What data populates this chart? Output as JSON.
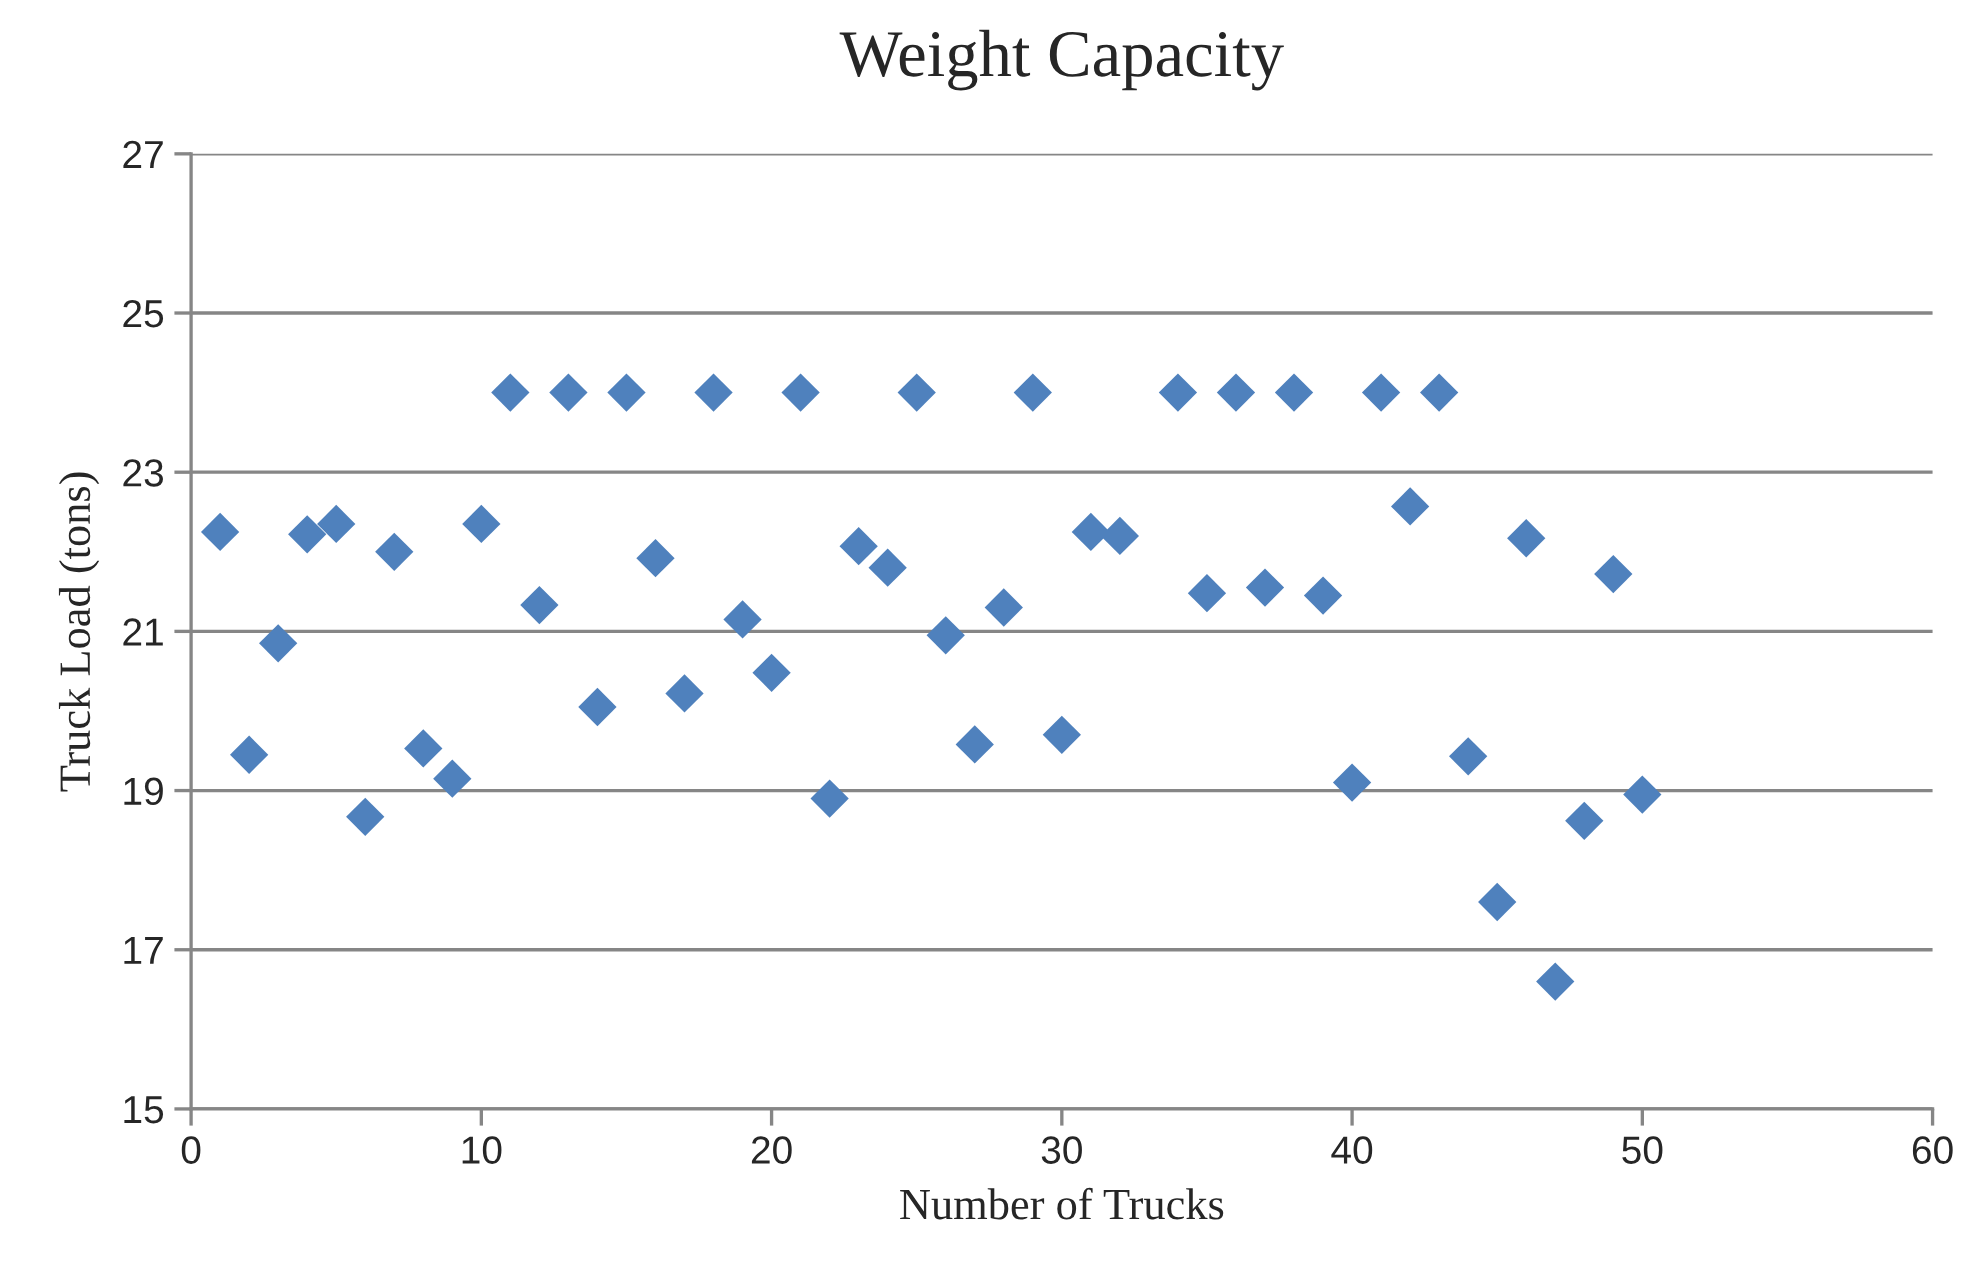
{
  "chart_data": {
    "type": "scatter",
    "title": "Weight Capacity",
    "xlabel": "Number of Trucks",
    "ylabel": "Truck Load (tons)",
    "x": [
      1,
      2,
      3,
      4,
      5,
      6,
      7,
      8,
      9,
      10,
      11,
      12,
      13,
      14,
      15,
      16,
      17,
      18,
      19,
      20,
      21,
      22,
      23,
      24,
      25,
      26,
      27,
      28,
      29,
      30,
      31,
      32,
      34,
      35,
      36,
      37,
      38,
      39,
      40,
      41,
      42,
      43,
      44,
      45,
      46,
      47,
      48,
      49,
      50
    ],
    "series": [
      {
        "color": "#4f81bd",
        "values": [
          22.25,
          19.45,
          20.85,
          22.22,
          22.35,
          18.67,
          22.0,
          19.53,
          19.15,
          22.35,
          24,
          21.33,
          24,
          20.05,
          24,
          21.92,
          20.22,
          24,
          21.15,
          20.48,
          24,
          18.9,
          22.07,
          21.8,
          24,
          20.95,
          19.58,
          21.3,
          24,
          19.7,
          22.25,
          22.2,
          24,
          21.48,
          24,
          21.55,
          24,
          21.45,
          19.1,
          24,
          22.57,
          24,
          19.43,
          17.6,
          22.17,
          16.6,
          18.62,
          21.72,
          18.95
        ]
      }
    ],
    "xlim": [
      0,
      60
    ],
    "xticks": [
      0,
      10,
      20,
      30,
      40,
      50,
      60
    ],
    "ylim": [
      15,
      27
    ],
    "yticks": [
      15,
      17,
      19,
      21,
      23,
      25,
      27
    ],
    "grid": "y",
    "marker": "diamond"
  }
}
